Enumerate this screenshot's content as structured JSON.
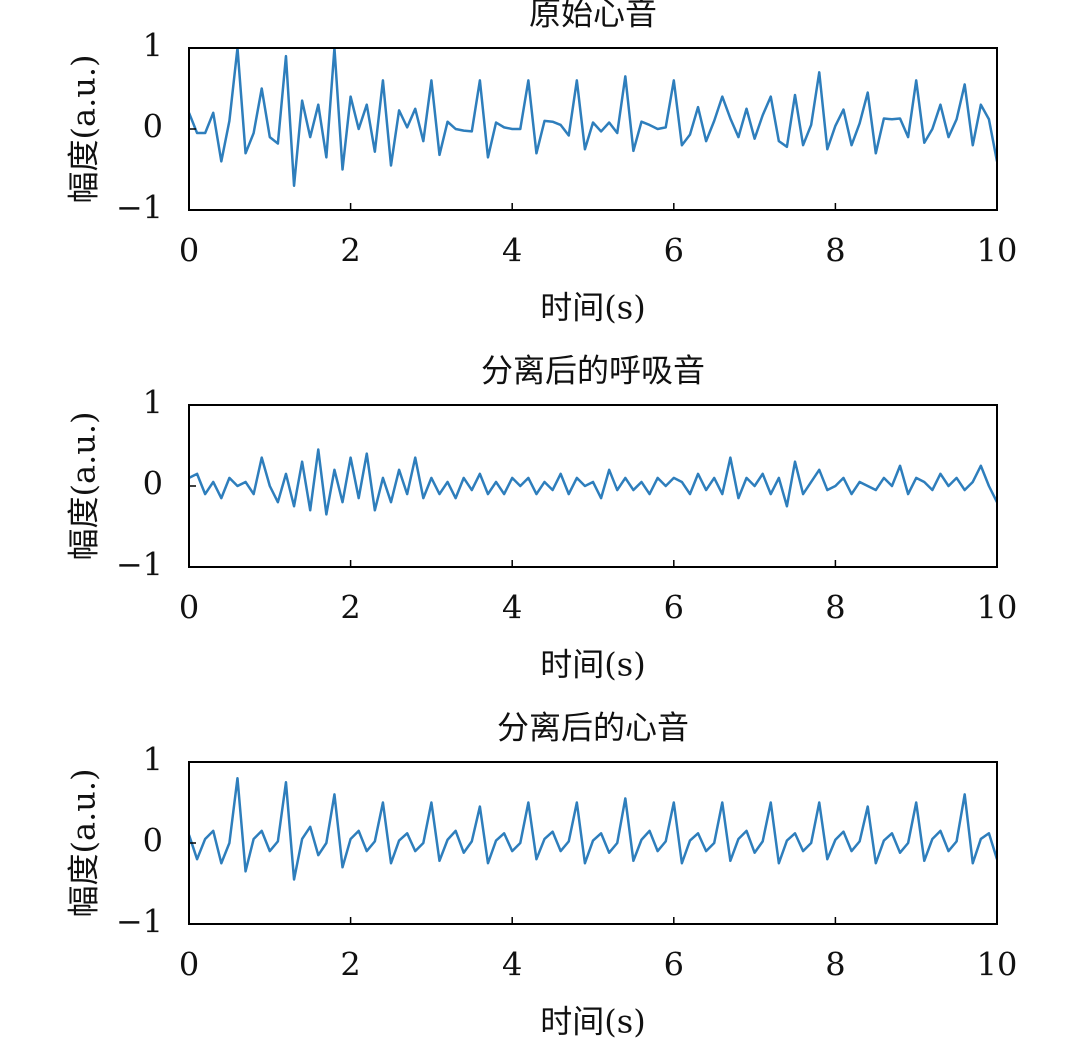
{
  "chart_data": [
    {
      "type": "line",
      "title": "原始心音",
      "xlabel": "时间(s)",
      "ylabel": "幅度(a.u.)",
      "color": "#2e7ebc",
      "xlim": [
        0,
        10
      ],
      "xticks": [
        0,
        2,
        4,
        6,
        8,
        10
      ],
      "ylim": [
        -1,
        1
      ],
      "yticks": [
        1,
        0,
        {
          "value": -1,
          "label": "−1"
        }
      ],
      "x": [
        0,
        0.1,
        0.2,
        0.3,
        0.4,
        0.5,
        0.6,
        0.7,
        0.8,
        0.9,
        1,
        1.1,
        1.2,
        1.3,
        1.4,
        1.5,
        1.6,
        1.7,
        1.8,
        1.9,
        2,
        2.1,
        2.2,
        2.3,
        2.4,
        2.5,
        2.6,
        2.7,
        2.8,
        2.9,
        3,
        3.1,
        3.2,
        3.3,
        3.4,
        3.5,
        3.6,
        3.7,
        3.8,
        3.9,
        4,
        4.1,
        4.2,
        4.3,
        4.4,
        4.5,
        4.6,
        4.7,
        4.8,
        4.9,
        5,
        5.1,
        5.2,
        5.3,
        5.4,
        5.5,
        5.6,
        5.7,
        5.8,
        5.9,
        6,
        6.1,
        6.2,
        6.3,
        6.4,
        6.5,
        6.6,
        6.7,
        6.8,
        6.9,
        7,
        7.1,
        7.2,
        7.3,
        7.4,
        7.5,
        7.6,
        7.7,
        7.8,
        7.9,
        8,
        8.1,
        8.2,
        8.3,
        8.4,
        8.5,
        8.6,
        8.7,
        8.8,
        8.9,
        9,
        9.1,
        9.2,
        9.3,
        9.4,
        9.5,
        9.6,
        9.7,
        9.8,
        9.9,
        10
      ],
      "values": [
        0.2,
        -0.05,
        -0.05,
        0.2,
        -0.4,
        0.1,
        1.0,
        -0.3,
        -0.05,
        0.5,
        -0.1,
        -0.18,
        0.9,
        -0.7,
        0.35,
        -0.1,
        0.3,
        -0.35,
        1.0,
        -0.5,
        0.4,
        0.0,
        0.3,
        -0.28,
        0.6,
        -0.45,
        0.23,
        0.02,
        0.25,
        -0.15,
        0.6,
        -0.32,
        0.09,
        0.0,
        -0.02,
        -0.03,
        0.6,
        -0.35,
        0.08,
        0.02,
        0.0,
        0.0,
        0.6,
        -0.3,
        0.1,
        0.09,
        0.05,
        -0.08,
        0.6,
        -0.25,
        0.08,
        -0.03,
        0.08,
        -0.05,
        0.65,
        -0.27,
        0.09,
        0.05,
        0.0,
        0.02,
        0.6,
        -0.2,
        -0.07,
        0.27,
        -0.15,
        0.1,
        0.4,
        0.13,
        -0.1,
        0.25,
        -0.12,
        0.17,
        0.4,
        -0.15,
        -0.22,
        0.42,
        -0.2,
        0.05,
        0.7,
        -0.25,
        0.04,
        0.24,
        -0.2,
        0.07,
        0.45,
        -0.3,
        0.13,
        0.12,
        0.13,
        -0.1,
        0.6,
        -0.17,
        0.0,
        0.3,
        -0.1,
        0.12,
        0.55,
        -0.2,
        0.3,
        0.12,
        -0.4
      ]
    },
    {
      "type": "line",
      "title": "分离后的呼吸音",
      "xlabel": "时间(s)",
      "ylabel": "幅度(a.u.)",
      "color": "#2e7ebc",
      "xlim": [
        0,
        10
      ],
      "xticks": [
        0,
        2,
        4,
        6,
        8,
        10
      ],
      "ylim": [
        -1,
        1
      ],
      "yticks": [
        1,
        0,
        {
          "value": -1,
          "label": "−1"
        }
      ],
      "x": [
        0,
        0.1,
        0.2,
        0.3,
        0.4,
        0.5,
        0.6,
        0.7,
        0.8,
        0.9,
        1,
        1.1,
        1.2,
        1.3,
        1.4,
        1.5,
        1.6,
        1.7,
        1.8,
        1.9,
        2,
        2.1,
        2.2,
        2.3,
        2.4,
        2.5,
        2.6,
        2.7,
        2.8,
        2.9,
        3,
        3.1,
        3.2,
        3.3,
        3.4,
        3.5,
        3.6,
        3.7,
        3.8,
        3.9,
        4,
        4.1,
        4.2,
        4.3,
        4.4,
        4.5,
        4.6,
        4.7,
        4.8,
        4.9,
        5,
        5.1,
        5.2,
        5.3,
        5.4,
        5.5,
        5.6,
        5.7,
        5.8,
        5.9,
        6,
        6.1,
        6.2,
        6.3,
        6.4,
        6.5,
        6.6,
        6.7,
        6.8,
        6.9,
        7,
        7.1,
        7.2,
        7.3,
        7.4,
        7.5,
        7.6,
        7.7,
        7.8,
        7.9,
        8,
        8.1,
        8.2,
        8.3,
        8.4,
        8.5,
        8.6,
        8.7,
        8.8,
        8.9,
        9,
        9.1,
        9.2,
        9.3,
        9.4,
        9.5,
        9.6,
        9.7,
        9.8,
        9.9,
        10
      ],
      "values": [
        0.1,
        0.15,
        -0.1,
        0.05,
        -0.15,
        0.1,
        0.0,
        0.05,
        -0.1,
        0.35,
        0.0,
        -0.2,
        0.15,
        -0.25,
        0.3,
        -0.3,
        0.45,
        -0.35,
        0.2,
        -0.2,
        0.35,
        -0.15,
        0.4,
        -0.3,
        0.1,
        -0.2,
        0.2,
        -0.1,
        0.35,
        -0.15,
        0.1,
        -0.1,
        0.05,
        -0.15,
        0.1,
        -0.05,
        0.15,
        -0.1,
        0.05,
        -0.1,
        0.1,
        0.0,
        0.1,
        -0.1,
        0.05,
        -0.05,
        0.15,
        -0.1,
        0.1,
        0.0,
        0.05,
        -0.15,
        0.2,
        -0.05,
        0.1,
        -0.05,
        0.05,
        -0.1,
        0.1,
        0.0,
        0.1,
        0.05,
        -0.1,
        0.15,
        -0.05,
        0.1,
        -0.1,
        0.35,
        -0.15,
        0.1,
        0.0,
        0.15,
        -0.1,
        0.1,
        -0.25,
        0.3,
        -0.1,
        0.05,
        0.2,
        -0.05,
        0.0,
        0.1,
        -0.1,
        0.05,
        0.0,
        -0.05,
        0.1,
        0.0,
        0.25,
        -0.1,
        0.1,
        0.05,
        -0.05,
        0.15,
        0.0,
        0.1,
        -0.05,
        0.05,
        0.25,
        0.0,
        -0.2
      ]
    },
    {
      "type": "line",
      "title": "分离后的心音",
      "xlabel": "时间(s)",
      "ylabel": "幅度(a.u.)",
      "color": "#2e7ebc",
      "xlim": [
        0,
        10
      ],
      "xticks": [
        0,
        2,
        4,
        6,
        8,
        10
      ],
      "ylim": [
        -1,
        1
      ],
      "yticks": [
        1,
        0,
        {
          "value": -1,
          "label": "−1"
        }
      ],
      "x": [
        0,
        0.1,
        0.2,
        0.3,
        0.4,
        0.5,
        0.6,
        0.7,
        0.8,
        0.9,
        1,
        1.1,
        1.2,
        1.3,
        1.4,
        1.5,
        1.6,
        1.7,
        1.8,
        1.9,
        2,
        2.1,
        2.2,
        2.3,
        2.4,
        2.5,
        2.6,
        2.7,
        2.8,
        2.9,
        3,
        3.1,
        3.2,
        3.3,
        3.4,
        3.5,
        3.6,
        3.7,
        3.8,
        3.9,
        4,
        4.1,
        4.2,
        4.3,
        4.4,
        4.5,
        4.6,
        4.7,
        4.8,
        4.9,
        5,
        5.1,
        5.2,
        5.3,
        5.4,
        5.5,
        5.6,
        5.7,
        5.8,
        5.9,
        6,
        6.1,
        6.2,
        6.3,
        6.4,
        6.5,
        6.6,
        6.7,
        6.8,
        6.9,
        7,
        7.1,
        7.2,
        7.3,
        7.4,
        7.5,
        7.6,
        7.7,
        7.8,
        7.9,
        8,
        8.1,
        8.2,
        8.3,
        8.4,
        8.5,
        8.6,
        8.7,
        8.8,
        8.9,
        9,
        9.1,
        9.2,
        9.3,
        9.4,
        9.5,
        9.6,
        9.7,
        9.8,
        9.9,
        10
      ],
      "values": [
        0.1,
        -0.2,
        0.05,
        0.15,
        -0.25,
        0.0,
        0.8,
        -0.35,
        0.05,
        0.15,
        -0.1,
        0.02,
        0.75,
        -0.45,
        0.05,
        0.2,
        -0.15,
        0.0,
        0.6,
        -0.3,
        0.05,
        0.15,
        -0.1,
        0.02,
        0.5,
        -0.25,
        0.03,
        0.12,
        -0.1,
        0.0,
        0.5,
        -0.22,
        0.04,
        0.15,
        -0.12,
        0.02,
        0.45,
        -0.25,
        0.03,
        0.12,
        -0.1,
        0.0,
        0.5,
        -0.2,
        0.05,
        0.14,
        -0.1,
        0.02,
        0.5,
        -0.25,
        0.03,
        0.12,
        -0.12,
        0.0,
        0.55,
        -0.22,
        0.04,
        0.15,
        -0.1,
        0.02,
        0.5,
        -0.25,
        0.03,
        0.12,
        -0.1,
        0.0,
        0.5,
        -0.22,
        0.05,
        0.15,
        -0.12,
        0.02,
        0.5,
        -0.25,
        0.03,
        0.12,
        -0.1,
        0.0,
        0.5,
        -0.2,
        0.04,
        0.14,
        -0.1,
        0.02,
        0.45,
        -0.25,
        0.03,
        0.12,
        -0.12,
        0.0,
        0.5,
        -0.22,
        0.05,
        0.15,
        -0.1,
        0.02,
        0.6,
        -0.25,
        0.05,
        0.12,
        -0.2
      ]
    }
  ]
}
